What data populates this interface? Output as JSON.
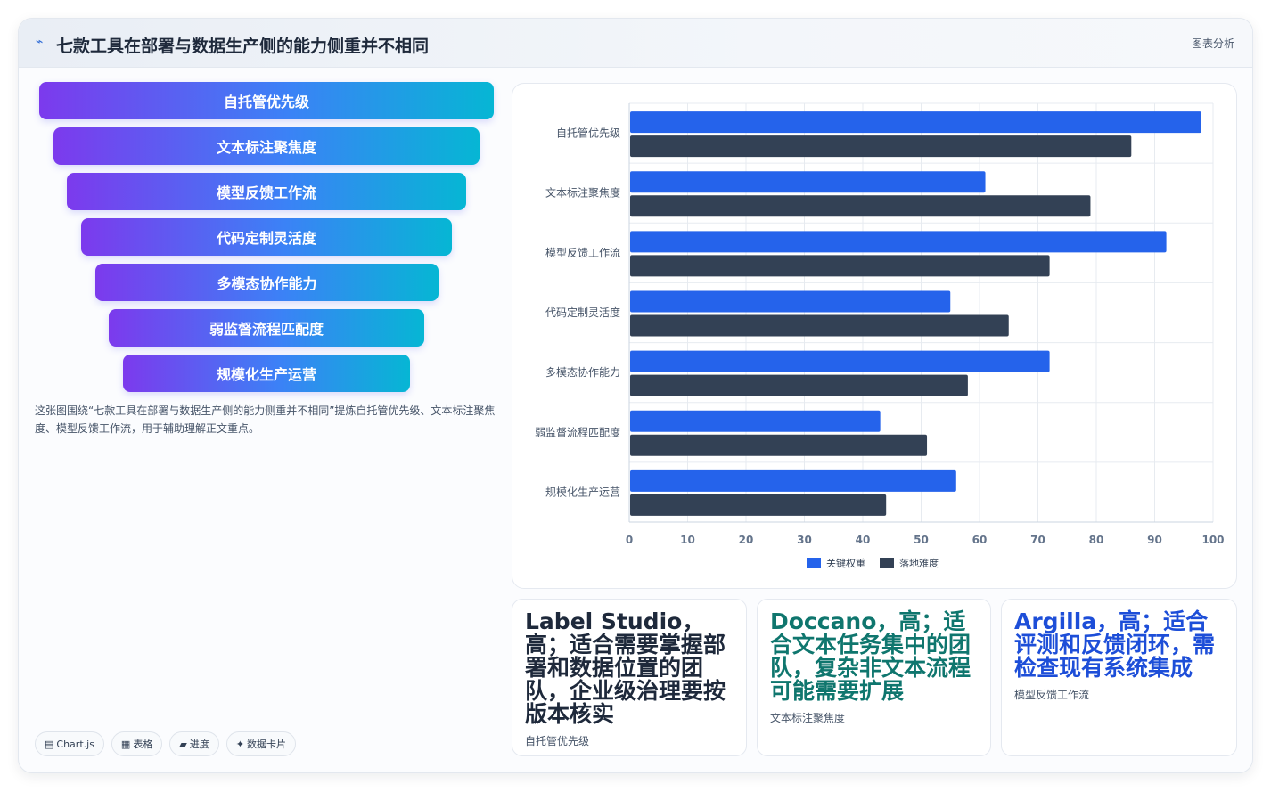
{
  "header": {
    "title": "七款工具在部署与数据生产侧的能力侧重并不相同",
    "right_label": "图表分析"
  },
  "funnel": {
    "items": [
      "自托管优先级",
      "文本标注聚焦度",
      "模型反馈工作流",
      "代码定制灵活度",
      "多模态协作能力",
      "弱监督流程匹配度",
      "规模化生产运营"
    ]
  },
  "description": "这张图围绕“七款工具在部署与数据生产侧的能力侧重并不相同”提炼自托管优先级、文本标注聚焦度、模型反馈工作流，用于辅助理解正文重点。",
  "chips": [
    {
      "icon": "▤",
      "label": "Chart.js"
    },
    {
      "icon": "▦",
      "label": "表格"
    },
    {
      "icon": "▰",
      "label": "进度"
    },
    {
      "icon": "✦",
      "label": "数据卡片"
    }
  ],
  "chart_data": {
    "type": "bar",
    "orientation": "horizontal",
    "categories": [
      "自托管优先级",
      "文本标注聚焦度",
      "模型反馈工作流",
      "代码定制灵活度",
      "多模态协作能力",
      "弱监督流程匹配度",
      "规模化生产运营"
    ],
    "series": [
      {
        "name": "关键权重",
        "color": "#2563eb",
        "values": [
          98,
          61,
          92,
          55,
          72,
          43,
          56
        ]
      },
      {
        "name": "落地难度",
        "color": "#334155",
        "values": [
          86,
          79,
          72,
          65,
          58,
          51,
          44
        ]
      }
    ],
    "xlim": [
      0,
      100
    ],
    "xticks": [
      0,
      10,
      20,
      30,
      40,
      50,
      60,
      70,
      80,
      90,
      100
    ],
    "grid": true,
    "legend_position": "bottom"
  },
  "cards": [
    {
      "title": "Label Studio，高；适合需要掌握部署和数据位置的团队，企业级治理要按版本核实",
      "subtitle": "自托管优先级",
      "color": "#1e293b"
    },
    {
      "title": "Doccano，高；适合文本任务集中的团队，复杂非文本流程可能需要扩展",
      "subtitle": "文本标注聚焦度",
      "color": "#0f766e"
    },
    {
      "title": "Argilla，高；适合评测和反馈闭环，需检查现有系统集成",
      "subtitle": "模型反馈工作流",
      "color": "#1d4ed8"
    }
  ]
}
